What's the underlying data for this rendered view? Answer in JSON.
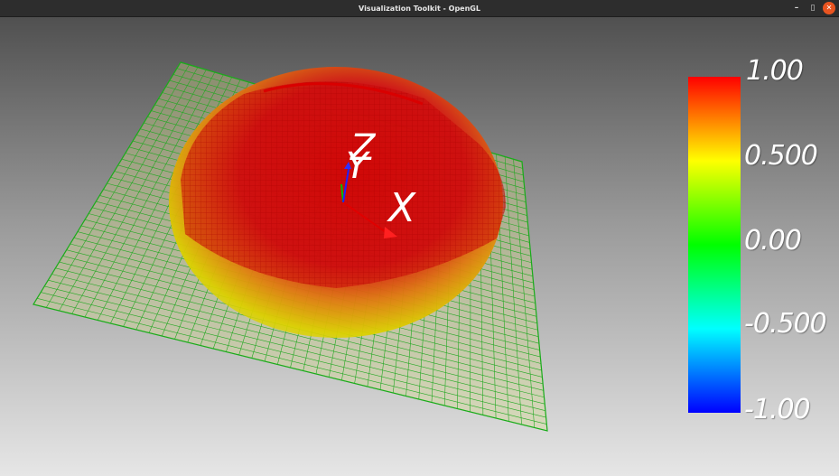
{
  "window": {
    "title": "Visualization Toolkit - OpenGL",
    "controls": {
      "minimize_glyph": "–",
      "maximize_glyph": "▯",
      "close_glyph": "✕"
    }
  },
  "scene": {
    "axes": {
      "x_label": "X",
      "y_label": "Y",
      "z_label": "Z"
    },
    "surface_color_low": "#00cc00",
    "surface_color_mid": "#e6e600",
    "surface_color_high": "#e00000"
  },
  "scalar_bar": {
    "labels": [
      "1.00",
      "0.500",
      "0.00",
      "-0.500",
      "-1.00"
    ],
    "colors": {
      "top": "#ff0000",
      "upper": "#ffff00",
      "middle": "#00ff00",
      "lower": "#00ffff",
      "bottom": "#0000ff"
    }
  }
}
